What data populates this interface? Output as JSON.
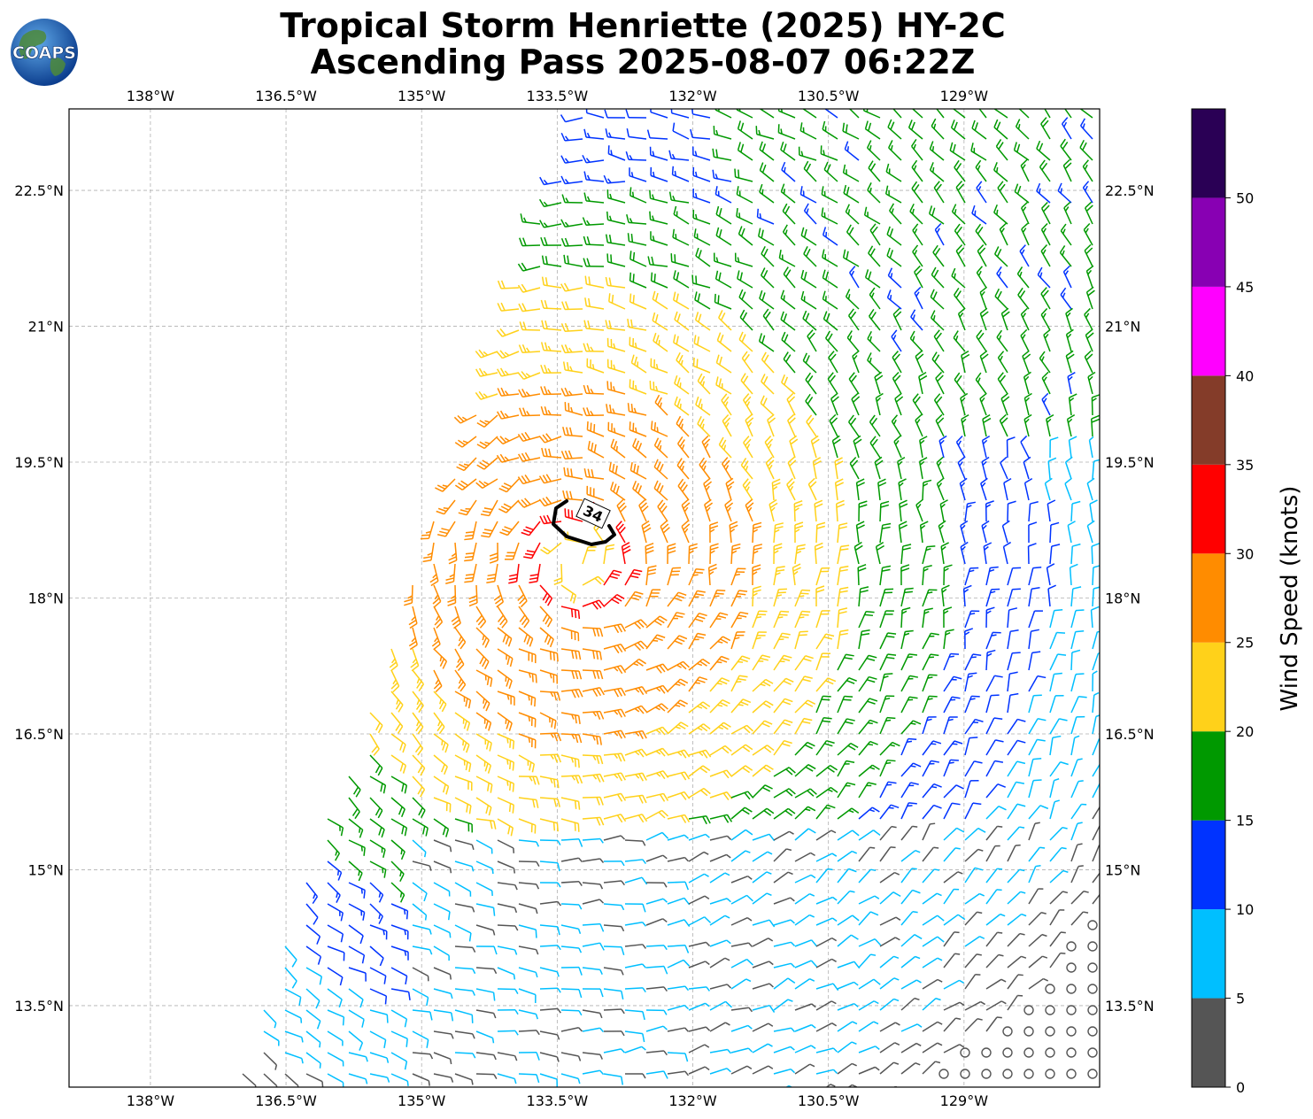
{
  "logo": {
    "text": "COAPS"
  },
  "title": {
    "line1": "Tropical Storm Henriette (2025) HY-2C",
    "line2": "Ascending Pass 2025-08-07 06:22Z"
  },
  "map": {
    "lon_range": [
      -138.9,
      -127.5
    ],
    "lat_range": [
      12.6,
      23.4
    ],
    "lon_ticks": [
      {
        "value": -138.0,
        "label": "138°W"
      },
      {
        "value": -136.5,
        "label": "136.5°W"
      },
      {
        "value": -135.0,
        "label": "135°W"
      },
      {
        "value": -133.5,
        "label": "133.5°W"
      },
      {
        "value": -132.0,
        "label": "132°W"
      },
      {
        "value": -130.5,
        "label": "130.5°W"
      },
      {
        "value": -129.0,
        "label": "129°W"
      }
    ],
    "lat_ticks": [
      {
        "value": 22.5,
        "label": "22.5°N"
      },
      {
        "value": 21.0,
        "label": "21°N"
      },
      {
        "value": 19.5,
        "label": "19.5°N"
      },
      {
        "value": 18.0,
        "label": "18°N"
      },
      {
        "value": 16.5,
        "label": "16.5°N"
      },
      {
        "value": 15.0,
        "label": "15°N"
      },
      {
        "value": 13.5,
        "label": "13.5°N"
      }
    ],
    "gridlines": true,
    "storm_center": {
      "lon": -133.3,
      "lat": 18.4
    },
    "contour": {
      "label": "34",
      "units": "knots"
    }
  },
  "colorbar": {
    "label": "Wind Speed (knots)",
    "bins": [
      {
        "min": 0,
        "max": 5,
        "color": "#555555"
      },
      {
        "min": 5,
        "max": 10,
        "color": "#00bfff"
      },
      {
        "min": 10,
        "max": 15,
        "color": "#0033ff"
      },
      {
        "min": 15,
        "max": 20,
        "color": "#009900"
      },
      {
        "min": 20,
        "max": 25,
        "color": "#ffd11a"
      },
      {
        "min": 25,
        "max": 30,
        "color": "#ff8c00"
      },
      {
        "min": 30,
        "max": 35,
        "color": "#ff0000"
      },
      {
        "min": 35,
        "max": 40,
        "color": "#843c29"
      },
      {
        "min": 40,
        "max": 45,
        "color": "#ff00ff"
      },
      {
        "min": 45,
        "max": 50,
        "color": "#8800b3"
      },
      {
        "min": 50,
        "max": 55,
        "color": "#2a0055"
      }
    ],
    "tick_labels": [
      "0",
      "5",
      "10",
      "15",
      "20",
      "25",
      "30",
      "35",
      "40",
      "45",
      "50"
    ]
  }
}
